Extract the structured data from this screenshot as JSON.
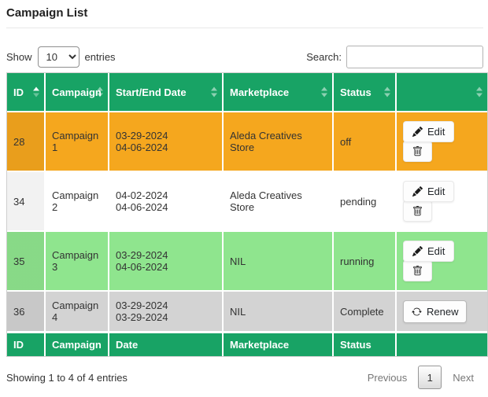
{
  "page": {
    "title": "Campaign List"
  },
  "controls": {
    "show_label": "Show",
    "entries_label": "entries",
    "page_length": "10",
    "search_label": "Search:",
    "search_value": ""
  },
  "table": {
    "headers": [
      {
        "label": "ID",
        "sort": "asc"
      },
      {
        "label": "Campaign",
        "sort": "both"
      },
      {
        "label": "Start/End Date",
        "sort": "both"
      },
      {
        "label": "Marketplace",
        "sort": "both"
      },
      {
        "label": "Status",
        "sort": "both"
      },
      {
        "label": "",
        "sort": "both"
      }
    ],
    "footer_headers": [
      "ID",
      "Campaign",
      "Date",
      "Marketplace",
      "Status",
      ""
    ],
    "rows": [
      {
        "id": "28",
        "campaign": "Campaign 1",
        "start_date": "03-29-2024",
        "end_date": "04-06-2024",
        "marketplace": "Aleda Creatives Store",
        "status": "off",
        "bg": "#f5a71e",
        "actions": [
          "edit",
          "delete"
        ]
      },
      {
        "id": "34",
        "campaign": "Campaign 2",
        "start_date": "04-02-2024",
        "end_date": "04-06-2024",
        "marketplace": "Aleda Creatives Store",
        "status": "pending",
        "bg": "#ffffff",
        "actions": [
          "edit",
          "delete"
        ]
      },
      {
        "id": "35",
        "campaign": "Campaign 3",
        "start_date": "03-29-2024",
        "end_date": "04-06-2024",
        "marketplace": "NIL",
        "status": "running",
        "bg": "#8fe58e",
        "actions": [
          "edit",
          "delete"
        ]
      },
      {
        "id": "36",
        "campaign": "Campaign 4",
        "start_date": "03-29-2024",
        "end_date": "03-29-2024",
        "marketplace": "NIL",
        "status": "Complete",
        "bg": "#d3d3d3",
        "actions": [
          "renew"
        ]
      }
    ],
    "action_labels": {
      "edit": "Edit",
      "renew": "Renew"
    }
  },
  "footer": {
    "info": "Showing 1 to 4 of 4 entries",
    "pagination": {
      "previous": "Previous",
      "current_page": "1",
      "next": "Next"
    }
  },
  "colors": {
    "header_bg": "#18a365",
    "row_off_bg": "#f5a71e",
    "row_pending_bg": "#ffffff",
    "row_running_bg": "#8fe58e",
    "row_complete_bg": "#d3d3d3"
  }
}
